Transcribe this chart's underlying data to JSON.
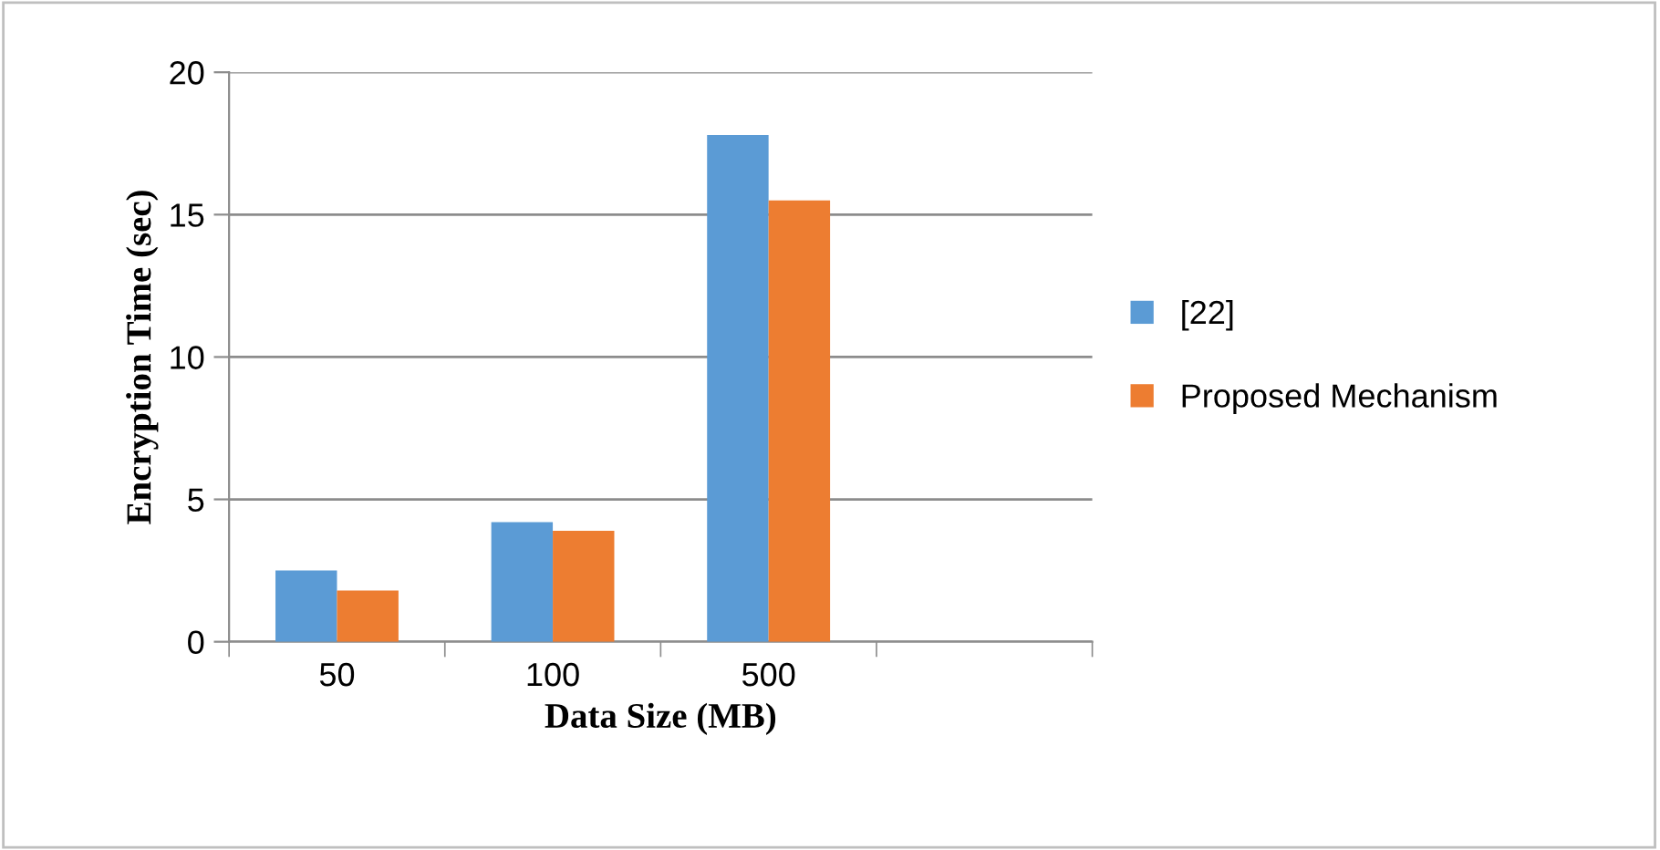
{
  "chart_data": {
    "type": "bar",
    "xlabel": "Data Size (MB)",
    "ylabel": "Encryption Time (sec)",
    "categories": [
      "50",
      "100",
      "500",
      null
    ],
    "series": [
      {
        "name": "[22]",
        "color": "#5b9bd5",
        "values": [
          2.5,
          4.2,
          17.8,
          null
        ]
      },
      {
        "name": "Proposed Mechanism",
        "color": "#ed7d31",
        "values": [
          1.8,
          3.9,
          15.5,
          null
        ]
      }
    ],
    "ylim": [
      0,
      20
    ],
    "yticks": [
      0,
      5,
      10,
      15,
      20
    ],
    "grid": "y",
    "legend": "right"
  }
}
